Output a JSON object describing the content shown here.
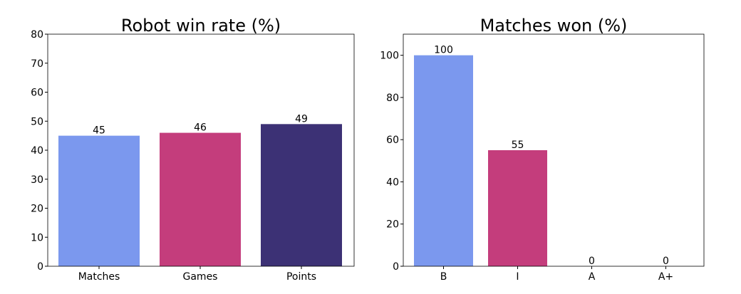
{
  "chart_data": [
    {
      "type": "bar",
      "title": "Robot win rate (%)",
      "xlabel": "",
      "ylabel": "",
      "categories": [
        "Matches",
        "Games",
        "Points"
      ],
      "values": [
        45,
        46,
        49
      ],
      "data_labels": [
        "45",
        "46",
        "49"
      ],
      "colors": [
        "#7b98ee",
        "#c43d7c",
        "#3c3175"
      ],
      "ylim": [
        0,
        80
      ],
      "yticks": [
        0,
        10,
        20,
        30,
        40,
        50,
        60,
        70,
        80
      ],
      "grid": false,
      "legend": "none"
    },
    {
      "type": "bar",
      "title": "Matches won (%)",
      "xlabel": "",
      "ylabel": "",
      "categories": [
        "B",
        "I",
        "A",
        "A+"
      ],
      "values": [
        100,
        55,
        0,
        0
      ],
      "data_labels": [
        "100",
        "55",
        "0",
        "0"
      ],
      "colors": [
        "#7b98ee",
        "#c43d7c",
        "#3c3175",
        "#3c3175"
      ],
      "ylim": [
        0,
        110
      ],
      "yticks": [
        0,
        20,
        40,
        60,
        80,
        100
      ],
      "grid": false,
      "legend": "none"
    }
  ]
}
